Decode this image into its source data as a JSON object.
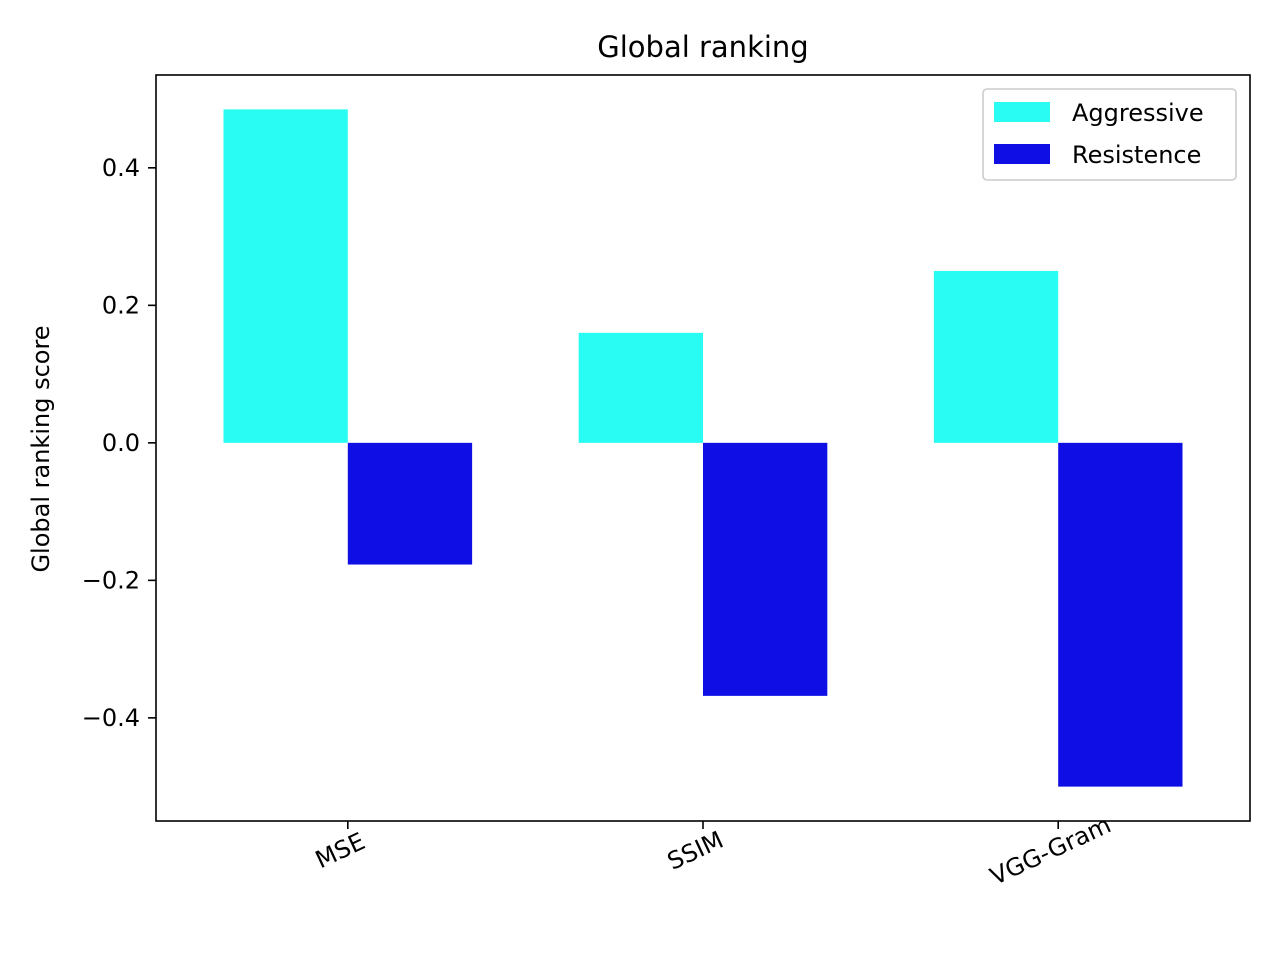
{
  "chart_data": {
    "type": "bar",
    "title": "Global ranking",
    "xlabel": "",
    "ylabel": "Global ranking score",
    "categories": [
      "MSE",
      "SSIM",
      "VGG-Gram"
    ],
    "series": [
      {
        "name": "Aggressive",
        "color": "#29fcf2",
        "values": [
          0.485,
          0.16,
          0.25
        ]
      },
      {
        "name": "Resistence",
        "color": "#0f0fe5",
        "values": [
          -0.177,
          -0.368,
          -0.5
        ]
      }
    ],
    "ylim": [
      -0.55,
      0.535
    ],
    "yticks": [
      {
        "value": 0.4,
        "label": "0.4"
      },
      {
        "value": 0.2,
        "label": "0.2"
      },
      {
        "value": 0.0,
        "label": "0.0"
      },
      {
        "value": -0.2,
        "label": "−0.2"
      },
      {
        "value": -0.4,
        "label": "−0.4"
      }
    ],
    "grid": false,
    "legend_position": "top-right",
    "xtick_rotation_deg": -25
  }
}
